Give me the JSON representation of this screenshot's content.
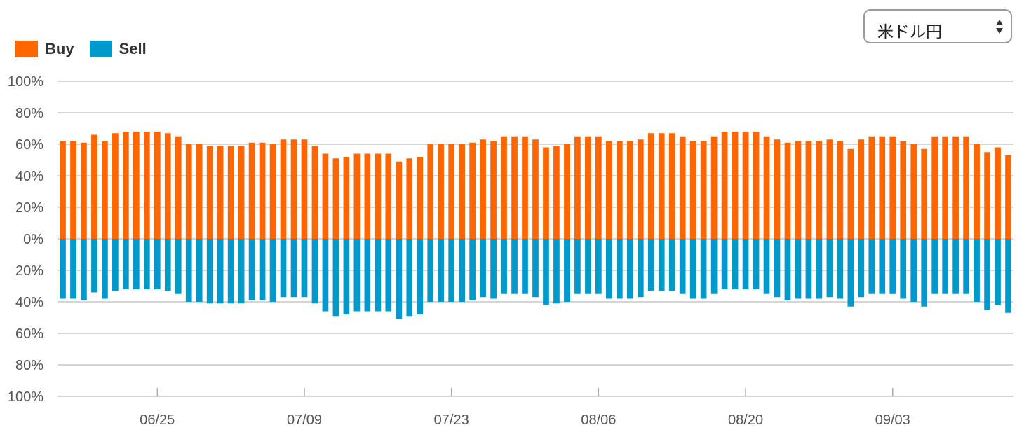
{
  "selector": {
    "value": "米ドル円",
    "icon": "up-down-arrows-icon"
  },
  "colors": {
    "buy": "#ff6600",
    "sell": "#0099cc",
    "grid": "#c8c8c8",
    "axis": "#aaaaaa"
  },
  "chart_data": {
    "type": "bar",
    "stacking": "diverging",
    "legend_position": "top-left",
    "grid": true,
    "ylim": [
      -100,
      100
    ],
    "ytick_labels": [
      "100%",
      "80%",
      "60%",
      "40%",
      "20%",
      "0%",
      "20%",
      "40%",
      "60%",
      "80%",
      "100%"
    ],
    "x_ticks": [
      {
        "label": "06/25",
        "index": 9
      },
      {
        "label": "07/09",
        "index": 23
      },
      {
        "label": "07/23",
        "index": 37
      },
      {
        "label": "08/06",
        "index": 51
      },
      {
        "label": "08/20",
        "index": 65
      },
      {
        "label": "09/03",
        "index": 79
      }
    ],
    "series": [
      {
        "name": "Buy",
        "values": [
          62,
          62,
          61,
          66,
          62,
          67,
          68,
          68,
          68,
          68,
          67,
          65,
          60,
          60,
          59,
          59,
          59,
          59,
          61,
          61,
          60,
          63,
          63,
          63,
          59,
          54,
          51,
          52,
          54,
          54,
          54,
          54,
          49,
          51,
          52,
          60,
          60,
          60,
          60,
          61,
          63,
          62,
          65,
          65,
          65,
          63,
          58,
          59,
          60,
          65,
          65,
          65,
          62,
          62,
          62,
          63,
          67,
          67,
          67,
          65,
          62,
          62,
          65,
          68,
          68,
          68,
          68,
          65,
          63,
          61,
          62,
          62,
          62,
          63,
          62,
          57,
          63,
          65,
          65,
          65,
          62,
          60,
          57,
          65,
          65,
          65,
          65,
          60,
          55,
          58,
          53
        ]
      },
      {
        "name": "Sell",
        "values": [
          38,
          38,
          39,
          34,
          38,
          33,
          32,
          32,
          32,
          32,
          33,
          35,
          40,
          40,
          41,
          41,
          41,
          41,
          39,
          39,
          40,
          37,
          37,
          37,
          41,
          46,
          49,
          48,
          46,
          46,
          46,
          46,
          51,
          49,
          48,
          40,
          40,
          40,
          40,
          39,
          37,
          38,
          35,
          35,
          35,
          37,
          42,
          41,
          40,
          35,
          35,
          35,
          38,
          38,
          38,
          37,
          33,
          33,
          33,
          35,
          38,
          38,
          35,
          32,
          32,
          32,
          32,
          35,
          37,
          39,
          38,
          38,
          38,
          37,
          38,
          43,
          37,
          35,
          35,
          35,
          38,
          40,
          43,
          35,
          35,
          35,
          35,
          40,
          45,
          42,
          47
        ]
      }
    ]
  }
}
